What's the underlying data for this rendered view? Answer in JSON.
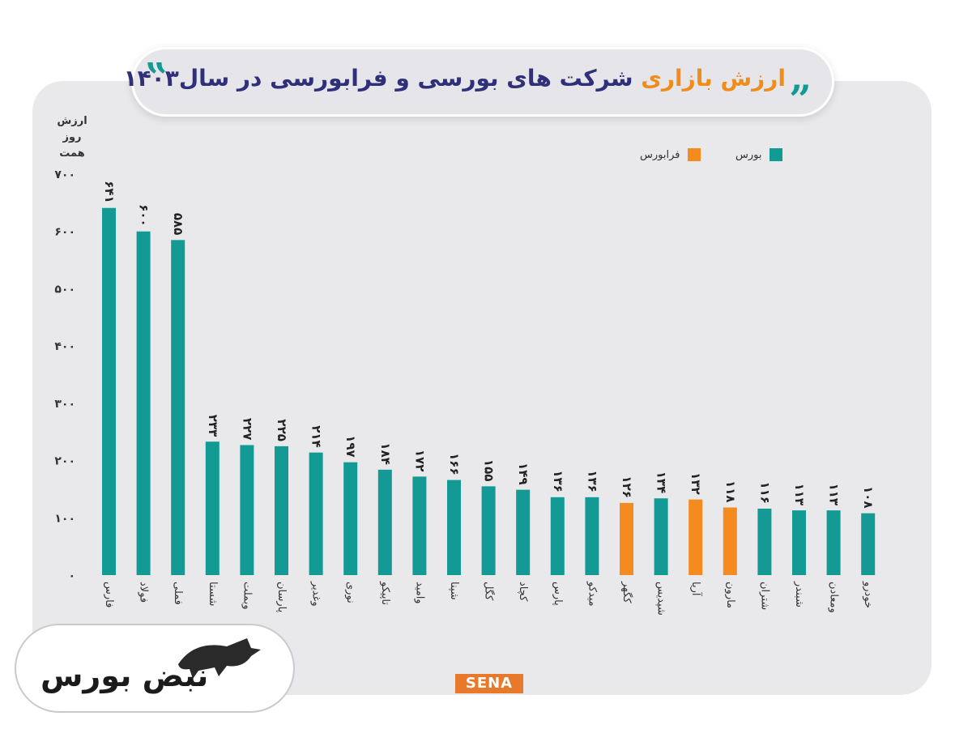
{
  "title": {
    "accent": "ارزش بازاری",
    "main": "شرکت های بورسی و فرابورسی در سال۱۴۰۳"
  },
  "quote_open": "‟",
  "quote_close": "„",
  "y_axis_label_line1": "ارزش روز",
  "y_axis_label_line2": "همت",
  "colors": {
    "bourse": "#149a94",
    "farabourse": "#f58a1f",
    "title": "#2f2f7a",
    "accent": "#f08c1a"
  },
  "logo_text": "نبض بورس",
  "watermark": "SENA",
  "chart_data": {
    "type": "bar",
    "ylim": [
      0,
      700
    ],
    "yticks": [
      0,
      100,
      200,
      300,
      400,
      500,
      600,
      700
    ],
    "ytick_labels": [
      "۰",
      "۱۰۰",
      "۲۰۰",
      "۳۰۰",
      "۴۰۰",
      "۵۰۰",
      "۶۰۰",
      "۷۰۰"
    ],
    "ylabel": "ارزش روز همت",
    "legend": [
      {
        "name": "بورس",
        "color": "#149a94"
      },
      {
        "name": "فرابورس",
        "color": "#f58a1f"
      }
    ],
    "legend_position": "top-right",
    "categories": [
      "فارس",
      "فولاد",
      "فملی",
      "شستا",
      "وبملت",
      "پارسان",
      "وغدیر",
      "نوری",
      "تاپیکو",
      "وامید",
      "شپنا",
      "کگل",
      "کچاد",
      "پارس",
      "میدکو",
      "کگهر",
      "شپدیس",
      "آریا",
      "مارون",
      "شتران",
      "شبندر",
      "ومعادن",
      "خودرو"
    ],
    "values": [
      641,
      600,
      585,
      233,
      227,
      225,
      214,
      197,
      184,
      172,
      166,
      155,
      149,
      136,
      136,
      126,
      134,
      132,
      118,
      116,
      113,
      113,
      108
    ],
    "value_labels": [
      "۶۴۱",
      "۶۰۰",
      "۵۸۵",
      "۲۳۳",
      "۲۲۷",
      "۲۲۵",
      "۲۱۴",
      "۱۹۷",
      "۱۸۴",
      "۱۷۲",
      "۱۶۶",
      "۱۵۵",
      "۱۴۹",
      "۱۳۶",
      "۱۳۶",
      "۱۲۶",
      "۱۳۴",
      "۱۳۲",
      "۱۱۸",
      "۱۱۶",
      "۱۱۳",
      "۱۱۳",
      "۱۰۸"
    ],
    "market": [
      "بورس",
      "بورس",
      "بورس",
      "بورس",
      "بورس",
      "بورس",
      "بورس",
      "بورس",
      "بورس",
      "بورس",
      "بورس",
      "بورس",
      "بورس",
      "بورس",
      "بورس",
      "فرابورس",
      "بورس",
      "فرابورس",
      "فرابورس",
      "بورس",
      "بورس",
      "بورس",
      "بورس"
    ]
  }
}
